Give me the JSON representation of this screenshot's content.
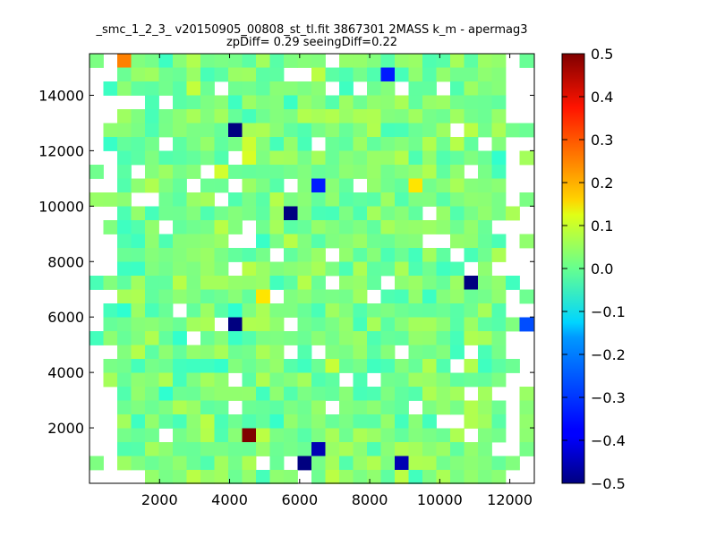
{
  "chart_data": {
    "type": "heatmap",
    "title": "_smc_1_2_3_ v20150905_00808_st_tl.fit 3867301 2MASS k_m - apermag3",
    "subtitle": "zpDiff= 0.29 seeingDiff=0.22",
    "xlabel": "",
    "ylabel": "",
    "xlim": [
      0,
      12700
    ],
    "ylim": [
      0,
      15500
    ],
    "xticks": [
      2000,
      4000,
      6000,
      8000,
      10000,
      12000
    ],
    "yticks": [
      2000,
      4000,
      6000,
      8000,
      10000,
      12000,
      14000
    ],
    "colormap": "jet",
    "colorbar": {
      "vmin": -0.5,
      "vmax": 0.5,
      "ticks": [
        "0.5",
        "0.4",
        "0.3",
        "0.2",
        "0.1",
        "0.0",
        "−0.1",
        "−0.2",
        "−0.3",
        "−0.4",
        "−0.5"
      ]
    },
    "grid": false,
    "notable_cells": [
      {
        "x": 1000,
        "y": 15000,
        "value": 0.25
      },
      {
        "x": 4500,
        "y": 1700,
        "value": 0.5
      },
      {
        "x": 4100,
        "y": 12700,
        "value": -0.5
      },
      {
        "x": 5900,
        "y": 9900,
        "value": -0.5
      },
      {
        "x": 4100,
        "y": 5600,
        "value": -0.5
      },
      {
        "x": 6300,
        "y": 600,
        "value": -0.5
      },
      {
        "x": 10900,
        "y": 7200,
        "value": -0.5
      },
      {
        "x": 9100,
        "y": 800,
        "value": -0.45
      },
      {
        "x": 6500,
        "y": 1200,
        "value": -0.45
      },
      {
        "x": 8500,
        "y": 14800,
        "value": -0.35
      },
      {
        "x": 6500,
        "y": 10800,
        "value": -0.35
      },
      {
        "x": 12600,
        "y": 5500,
        "value": -0.3
      },
      {
        "x": 9300,
        "y": 10500,
        "value": 0.15
      },
      {
        "x": 5000,
        "y": 6600,
        "value": 0.15
      }
    ]
  }
}
